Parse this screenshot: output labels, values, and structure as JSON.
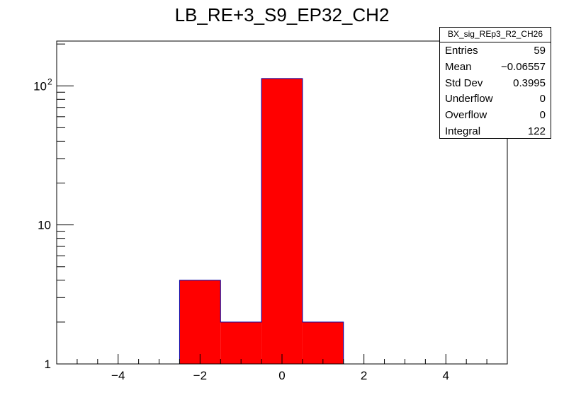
{
  "chart_data": {
    "type": "bar",
    "title": "LB_RE+3_S9_EP32_CH2",
    "xlabel": "",
    "ylabel": "",
    "xlim": [
      -5.5,
      5.5
    ],
    "ylim": [
      1,
      210
    ],
    "y_scale": "log",
    "bin_width": 1,
    "bins": [
      {
        "x": -2,
        "value": 4
      },
      {
        "x": -1,
        "value": 2
      },
      {
        "x": 0,
        "value": 113
      },
      {
        "x": 1,
        "value": 2
      }
    ],
    "x_ticks": [
      {
        "value": -4,
        "label": "−4"
      },
      {
        "value": -2,
        "label": "−2"
      },
      {
        "value": 0,
        "label": "0"
      },
      {
        "value": 2,
        "label": "2"
      },
      {
        "value": 4,
        "label": "4"
      }
    ],
    "y_ticks": [
      {
        "value": 1,
        "label": "1"
      },
      {
        "value": 10,
        "label": "10"
      },
      {
        "value": 100,
        "label": "10",
        "exponent": "2"
      }
    ],
    "fill_color": "#ff0000",
    "line_color": "#0000aa",
    "grid": false,
    "legend": "top-right"
  },
  "stats": {
    "title": "BX_sig_REp3_R2_CH26",
    "rows": [
      {
        "label": "Entries",
        "value": "59"
      },
      {
        "label": "Mean",
        "value": "−0.06557"
      },
      {
        "label": "Std Dev",
        "value": "0.3995"
      },
      {
        "label": "Underflow",
        "value": "0"
      },
      {
        "label": "Overflow",
        "value": "0"
      },
      {
        "label": "Integral",
        "value": "122"
      }
    ]
  }
}
